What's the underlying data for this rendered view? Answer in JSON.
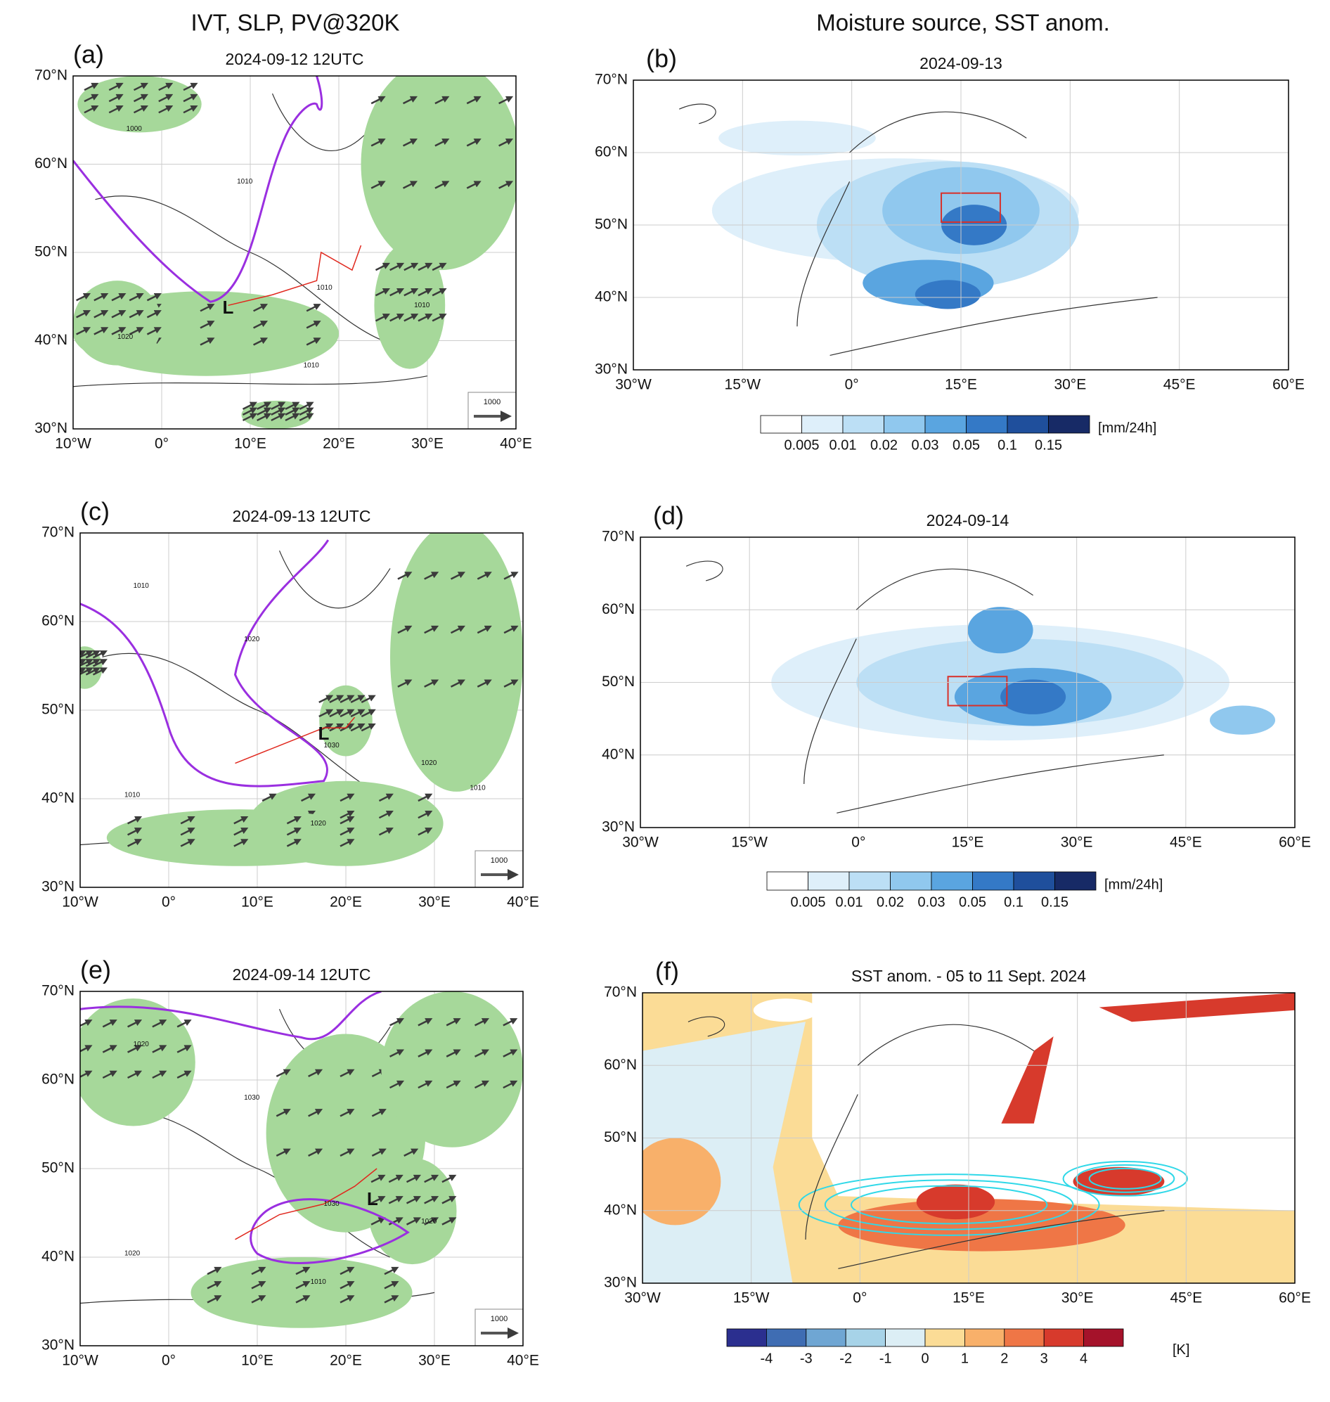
{
  "column_titles": [
    "IVT, SLP, PV@320K",
    "Moisture source, SST anom."
  ],
  "panels": [
    {
      "label": "(a)",
      "title": "2024-09-12 12UTC",
      "lat_labels": [
        "70°N",
        "60°N",
        "50°N",
        "40°N",
        "30°N"
      ],
      "lon_labels": [
        "10°W",
        "0°",
        "10°E",
        "20°E",
        "30°E",
        "40°E"
      ],
      "low": "L",
      "ref_vector": "1000",
      "contour_labels": [
        "1000",
        "1010",
        "1010",
        "1010",
        "1010",
        "1020"
      ]
    },
    {
      "label": "(b)",
      "title": "2024-09-13",
      "lat_labels": [
        "70°N",
        "60°N",
        "50°N",
        "40°N",
        "30°N"
      ],
      "lon_labels": [
        "30°W",
        "15°W",
        "0°",
        "15°E",
        "30°E",
        "45°E",
        "60°E"
      ],
      "colorbar": {
        "ticks": [
          "0.005",
          "0.01",
          "0.02",
          "0.03",
          "0.05",
          "0.1",
          "0.15"
        ],
        "units": "[mm/24h]",
        "colors": [
          "#ffffff",
          "#deeffa",
          "#bcdff5",
          "#90c8ee",
          "#5aa5e0",
          "#3479c6",
          "#1f4f9c",
          "#172a66"
        ]
      }
    },
    {
      "label": "(c)",
      "title": "2024-09-13 12UTC",
      "lat_labels": [
        "70°N",
        "60°N",
        "50°N",
        "40°N",
        "30°N"
      ],
      "lon_labels": [
        "10°W",
        "0°",
        "10°E",
        "20°E",
        "30°E",
        "40°E"
      ],
      "low": "L",
      "ref_vector": "1000",
      "contour_labels": [
        "1010",
        "1020",
        "1030",
        "1020",
        "1020",
        "1010",
        "1010"
      ]
    },
    {
      "label": "(d)",
      "title": "2024-09-14",
      "lat_labels": [
        "70°N",
        "60°N",
        "50°N",
        "40°N",
        "30°N"
      ],
      "lon_labels": [
        "30°W",
        "15°W",
        "0°",
        "15°E",
        "30°E",
        "45°E",
        "60°E"
      ],
      "colorbar": {
        "ticks": [
          "0.005",
          "0.01",
          "0.02",
          "0.03",
          "0.05",
          "0.1",
          "0.15"
        ],
        "units": "[mm/24h]",
        "colors": [
          "#ffffff",
          "#deeffa",
          "#bcdff5",
          "#90c8ee",
          "#5aa5e0",
          "#3479c6",
          "#1f4f9c",
          "#172a66"
        ]
      }
    },
    {
      "label": "(e)",
      "title": "2024-09-14 12UTC",
      "lat_labels": [
        "70°N",
        "60°N",
        "50°N",
        "40°N",
        "30°N"
      ],
      "lon_labels": [
        "10°W",
        "0°",
        "10°E",
        "20°E",
        "30°E",
        "40°E"
      ],
      "low": "L",
      "ref_vector": "1000",
      "contour_labels": [
        "1020",
        "1030",
        "1030",
        "1020",
        "1010",
        "1020"
      ]
    },
    {
      "label": "(f)",
      "title": "SST anom. - 05 to 11 Sept. 2024",
      "lat_labels": [
        "70°N",
        "60°N",
        "50°N",
        "40°N",
        "30°N"
      ],
      "lon_labels": [
        "30°W",
        "15°W",
        "0°",
        "15°E",
        "30°E",
        "45°E",
        "60°E"
      ],
      "colorbar": {
        "ticks": [
          "-4",
          "-3",
          "-2",
          "-1",
          "0",
          "1",
          "2",
          "3",
          "4"
        ],
        "units": "[K]",
        "colors": [
          "#2b2f8f",
          "#3f6db3",
          "#6fa6d3",
          "#a7d3e8",
          "#dceef5",
          "#fbdc96",
          "#f8b06a",
          "#ef7646",
          "#d73a2c",
          "#a5122a"
        ]
      }
    }
  ]
}
